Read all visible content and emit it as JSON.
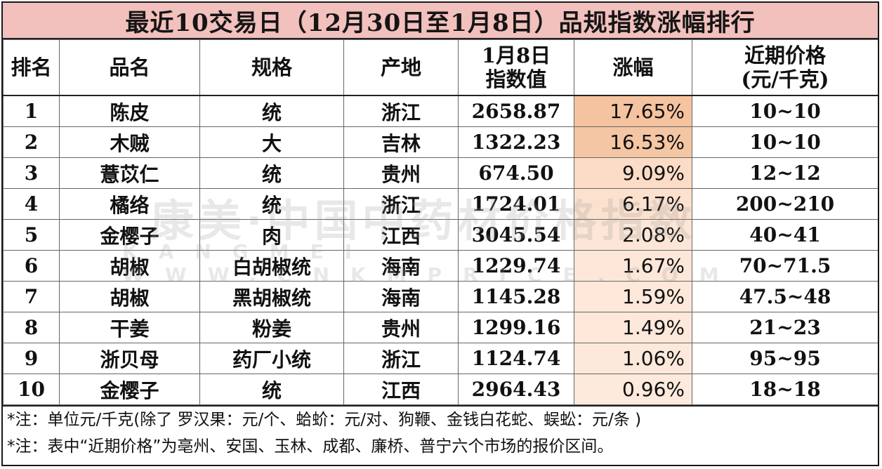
{
  "title": "最近10交易日（12月30日至1月8日）品规指数涨幅排行",
  "headers": {
    "rank": "排名",
    "name": "品名",
    "spec": "规格",
    "origin": "产地",
    "index_line1": "1月8日",
    "index_line2": "指数值",
    "change": "涨幅",
    "price_line1": "近期价格",
    "price_line2": "(元/千克)"
  },
  "rows": [
    {
      "rank": "1",
      "name": "陈皮",
      "spec": "统",
      "origin": "浙江",
      "index": "2658.87",
      "change": "17.65%",
      "price": "10~10"
    },
    {
      "rank": "2",
      "name": "木贼",
      "spec": "大",
      "origin": "吉林",
      "index": "1322.23",
      "change": "16.53%",
      "price": "10~10"
    },
    {
      "rank": "3",
      "name": "薏苡仁",
      "spec": "统",
      "origin": "贵州",
      "index": "674.50",
      "change": "9.09%",
      "price": "12~12"
    },
    {
      "rank": "4",
      "name": "橘络",
      "spec": "统",
      "origin": "浙江",
      "index": "1724.01",
      "change": "6.17%",
      "price": "200~210"
    },
    {
      "rank": "5",
      "name": "金樱子",
      "spec": "肉",
      "origin": "江西",
      "index": "3045.54",
      "change": "2.08%",
      "price": "40~41"
    },
    {
      "rank": "6",
      "name": "胡椒",
      "spec": "白胡椒统",
      "origin": "海南",
      "index": "1229.74",
      "change": "1.67%",
      "price": "70~71.5"
    },
    {
      "rank": "7",
      "name": "胡椒",
      "spec": "黑胡椒统",
      "origin": "海南",
      "index": "1145.28",
      "change": "1.59%",
      "price": "47.5~48"
    },
    {
      "rank": "8",
      "name": "干姜",
      "spec": "粉姜",
      "origin": "贵州",
      "index": "1299.16",
      "change": "1.49%",
      "price": "21~23"
    },
    {
      "rank": "9",
      "name": "浙贝母",
      "spec": "药厂小统",
      "origin": "浙江",
      "index": "1124.74",
      "change": "1.06%",
      "price": "95~95"
    },
    {
      "rank": "10",
      "name": "金樱子",
      "spec": "统",
      "origin": "江西",
      "index": "2964.43",
      "change": "0.96%",
      "price": "18~18"
    }
  ],
  "notes": [
    "*注：单位元/千克(除了 罗汉果：元/个、蛤蚧：元/对、狗鞭、金钱白花蛇、蜈蚣：元/条 )",
    "*注：表中“近期价格”为亳州、安国、玉林、成都、廉桥、普宁六个市场的报价区间。"
  ],
  "watermark": {
    "logo": "康美·中国中药材价格指数",
    "url": "KANGMEI WWW.CNKMPRICE.COM"
  },
  "colors": {
    "title_bg": "#f2c0bd",
    "change_high": "#f5c39f",
    "change_low": "#fde8da"
  }
}
